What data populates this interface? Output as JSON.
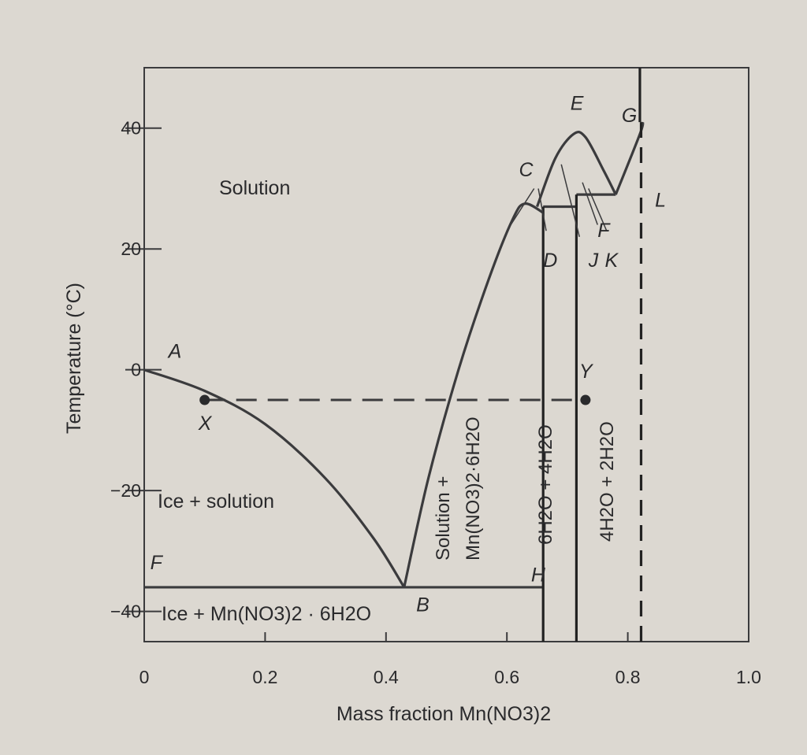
{
  "chart_data": {
    "type": "line",
    "title": "",
    "xlabel": "Mass fraction Mn(NO3)2",
    "ylabel": "Temperature (°C)",
    "xlim": [
      0,
      1.0
    ],
    "ylim": [
      -45,
      50
    ],
    "x_ticks": [
      0,
      0.2,
      0.4,
      0.6,
      0.8,
      1.0
    ],
    "x_tick_labels": [
      "0",
      "0.2",
      "0.4",
      "0.6",
      "0.8",
      "1.0"
    ],
    "y_ticks": [
      -40,
      -20,
      0,
      20,
      40
    ],
    "y_tick_labels": [
      "−40",
      "−20",
      "0",
      "20",
      "40"
    ],
    "grid": false,
    "series": [
      {
        "values": [
          [
            0.0,
            0.0
          ],
          [
            0.1,
            -3.5
          ],
          [
            0.2,
            -9
          ],
          [
            0.3,
            -18
          ],
          [
            0.38,
            -28
          ],
          [
            0.43,
            -36
          ]
        ]
      },
      {
        "values": [
          [
            0.43,
            -36
          ],
          [
            0.47,
            -18
          ],
          [
            0.52,
            0
          ],
          [
            0.57,
            15
          ],
          [
            0.61,
            25
          ],
          [
            0.63,
            27.5
          ],
          [
            0.66,
            26
          ]
        ]
      },
      {
        "values": [
          [
            0.65,
            27
          ],
          [
            0.68,
            35
          ],
          [
            0.71,
            39
          ],
          [
            0.73,
            38.5
          ],
          [
            0.76,
            33
          ],
          [
            0.78,
            29
          ]
        ]
      },
      {
        "values": [
          [
            0.78,
            29
          ],
          [
            0.82,
            39
          ],
          [
            0.825,
            41
          ]
        ]
      }
    ],
    "horizontal_lines": [
      {
        "y": -36,
        "x": [
          0.0,
          0.66
        ]
      },
      {
        "y": 27,
        "x": [
          0.66,
          0.715
        ]
      },
      {
        "y": 29,
        "x": [
          0.715,
          0.78
        ]
      }
    ],
    "vertical_lines": [
      {
        "x": 0.66,
        "y": [
          -45,
          27
        ]
      },
      {
        "x": 0.715,
        "y": [
          -45,
          29
        ]
      },
      {
        "x": 0.82,
        "y": [
          41,
          50
        ]
      },
      {
        "x": 0.822,
        "y": [
          -45,
          41
        ],
        "dashed": true
      }
    ],
    "tie_line": {
      "x": [
        0.1,
        0.73
      ],
      "y": -5,
      "dashed": true
    },
    "points": [
      {
        "label": "X",
        "x": 0.1,
        "y": -5
      },
      {
        "label": "Y",
        "x": 0.73,
        "y": -5
      }
    ],
    "point_labels": [
      {
        "label": "A",
        "x": 0.04,
        "y": 2
      },
      {
        "label": "B",
        "x": 0.45,
        "y": -40
      },
      {
        "label": "C",
        "x": 0.62,
        "y": 32
      },
      {
        "label": "D",
        "x": 0.66,
        "y": 17
      },
      {
        "label": "E",
        "x": 0.705,
        "y": 43
      },
      {
        "label": "F",
        "x": 0.75,
        "y": 22
      },
      {
        "label": "G",
        "x": 0.79,
        "y": 41
      },
      {
        "label": "H",
        "x": 0.64,
        "y": -35
      },
      {
        "label": "J",
        "x": 0.735,
        "y": 17
      },
      {
        "label": "K",
        "x": 0.762,
        "y": 17
      },
      {
        "label": "L",
        "x": 0.845,
        "y": 27
      },
      {
        "label": "F",
        "x": 0.01,
        "y": -33
      }
    ],
    "region_labels": [
      {
        "text": "Solution"
      },
      {
        "text": "Ice + solution"
      },
      {
        "text": "Ice + Mn(NO3)2 · 6H2O"
      },
      {
        "text": "Solution +"
      },
      {
        "text": "Mn(NO3)2·6H2O"
      },
      {
        "text": "6H2O + 4H2O"
      },
      {
        "text": "4H2O + 2H2O"
      }
    ]
  }
}
